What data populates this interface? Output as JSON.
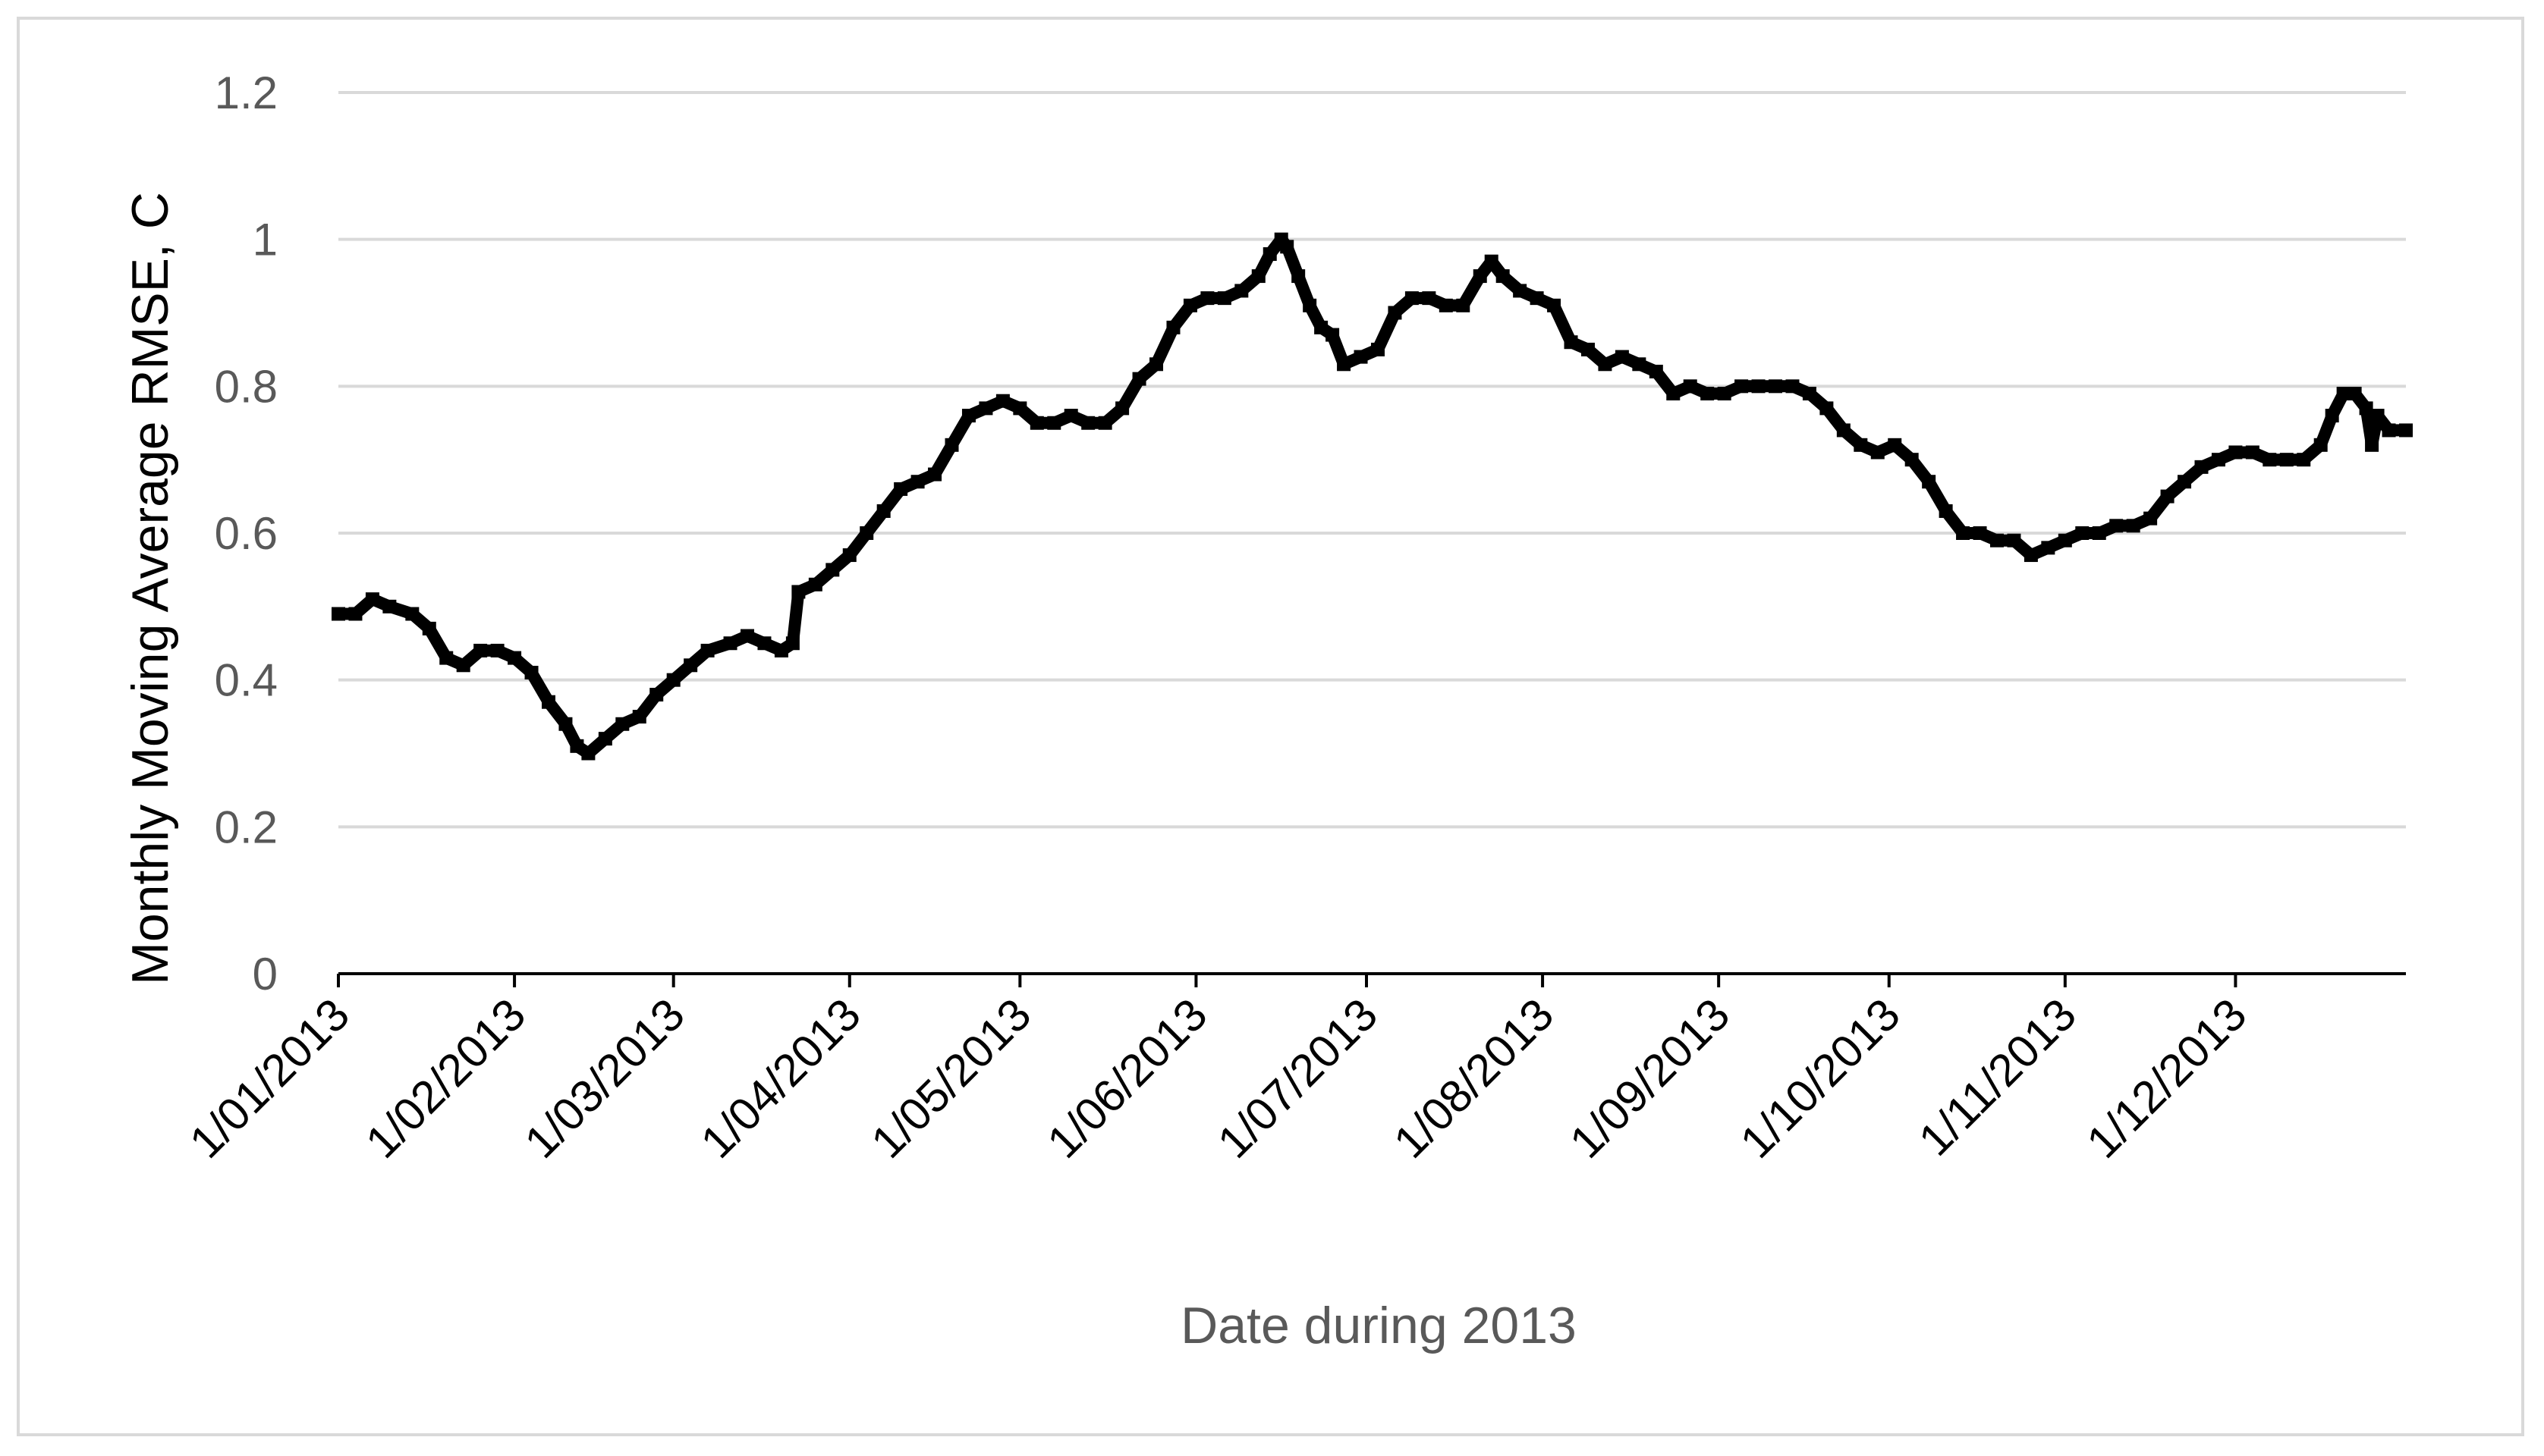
{
  "chart_data": {
    "type": "line",
    "title": "",
    "xlabel": "Date during 2013",
    "ylabel": "Monthly Moving Average RMSE, C",
    "ylim": [
      0,
      1.2
    ],
    "y_ticks": [
      "0",
      "0.2",
      "0.4",
      "0.6",
      "0.8",
      "1",
      "1.2"
    ],
    "x_range": [
      "2013-01-01",
      "2013-12-31"
    ],
    "x_ticks": [
      {
        "label": "1/01/2013",
        "date": "2013-01-01"
      },
      {
        "label": "1/02/2013",
        "date": "2013-02-01"
      },
      {
        "label": "1/03/2013",
        "date": "2013-03-01"
      },
      {
        "label": "1/04/2013",
        "date": "2013-04-01"
      },
      {
        "label": "1/05/2013",
        "date": "2013-05-01"
      },
      {
        "label": "1/06/2013",
        "date": "2013-06-01"
      },
      {
        "label": "1/07/2013",
        "date": "2013-07-01"
      },
      {
        "label": "1/08/2013",
        "date": "2013-08-01"
      },
      {
        "label": "1/09/2013",
        "date": "2013-09-01"
      },
      {
        "label": "1/10/2013",
        "date": "2013-10-01"
      },
      {
        "label": "1/11/2013",
        "date": "2013-11-01"
      },
      {
        "label": "1/12/2013",
        "date": "2013-12-01"
      }
    ],
    "grid": true,
    "legend": "none",
    "series": [
      {
        "color": "#000000",
        "points": [
          [
            "2013-01-01",
            0.49
          ],
          [
            "2013-01-04",
            0.49
          ],
          [
            "2013-01-07",
            0.51
          ],
          [
            "2013-01-10",
            0.5
          ],
          [
            "2013-01-14",
            0.49
          ],
          [
            "2013-01-17",
            0.47
          ],
          [
            "2013-01-20",
            0.43
          ],
          [
            "2013-01-23",
            0.42
          ],
          [
            "2013-01-26",
            0.44
          ],
          [
            "2013-01-29",
            0.44
          ],
          [
            "2013-02-01",
            0.43
          ],
          [
            "2013-02-04",
            0.41
          ],
          [
            "2013-02-07",
            0.37
          ],
          [
            "2013-02-10",
            0.34
          ],
          [
            "2013-02-12",
            0.31
          ],
          [
            "2013-02-14",
            0.3
          ],
          [
            "2013-02-17",
            0.32
          ],
          [
            "2013-02-20",
            0.34
          ],
          [
            "2013-02-23",
            0.35
          ],
          [
            "2013-02-26",
            0.38
          ],
          [
            "2013-03-01",
            0.4
          ],
          [
            "2013-03-04",
            0.42
          ],
          [
            "2013-03-07",
            0.44
          ],
          [
            "2013-03-11",
            0.45
          ],
          [
            "2013-03-14",
            0.46
          ],
          [
            "2013-03-17",
            0.45
          ],
          [
            "2013-03-20",
            0.44
          ],
          [
            "2013-03-22",
            0.45
          ],
          [
            "2013-03-23",
            0.52
          ],
          [
            "2013-03-26",
            0.53
          ],
          [
            "2013-03-29",
            0.55
          ],
          [
            "2013-04-01",
            0.57
          ],
          [
            "2013-04-04",
            0.6
          ],
          [
            "2013-04-07",
            0.63
          ],
          [
            "2013-04-10",
            0.66
          ],
          [
            "2013-04-13",
            0.67
          ],
          [
            "2013-04-16",
            0.68
          ],
          [
            "2013-04-19",
            0.72
          ],
          [
            "2013-04-22",
            0.76
          ],
          [
            "2013-04-25",
            0.77
          ],
          [
            "2013-04-28",
            0.78
          ],
          [
            "2013-05-01",
            0.77
          ],
          [
            "2013-05-04",
            0.75
          ],
          [
            "2013-05-07",
            0.75
          ],
          [
            "2013-05-10",
            0.76
          ],
          [
            "2013-05-13",
            0.75
          ],
          [
            "2013-05-16",
            0.75
          ],
          [
            "2013-05-19",
            0.77
          ],
          [
            "2013-05-22",
            0.81
          ],
          [
            "2013-05-25",
            0.83
          ],
          [
            "2013-05-28",
            0.88
          ],
          [
            "2013-05-31",
            0.91
          ],
          [
            "2013-06-03",
            0.92
          ],
          [
            "2013-06-06",
            0.92
          ],
          [
            "2013-06-09",
            0.93
          ],
          [
            "2013-06-12",
            0.95
          ],
          [
            "2013-06-14",
            0.98
          ],
          [
            "2013-06-16",
            1.0
          ],
          [
            "2013-06-17",
            0.99
          ],
          [
            "2013-06-19",
            0.95
          ],
          [
            "2013-06-21",
            0.91
          ],
          [
            "2013-06-23",
            0.88
          ],
          [
            "2013-06-25",
            0.87
          ],
          [
            "2013-06-27",
            0.83
          ],
          [
            "2013-06-30",
            0.84
          ],
          [
            "2013-07-03",
            0.85
          ],
          [
            "2013-07-06",
            0.9
          ],
          [
            "2013-07-09",
            0.92
          ],
          [
            "2013-07-12",
            0.92
          ],
          [
            "2013-07-15",
            0.91
          ],
          [
            "2013-07-18",
            0.91
          ],
          [
            "2013-07-21",
            0.95
          ],
          [
            "2013-07-23",
            0.97
          ],
          [
            "2013-07-25",
            0.95
          ],
          [
            "2013-07-28",
            0.93
          ],
          [
            "2013-07-31",
            0.92
          ],
          [
            "2013-08-03",
            0.91
          ],
          [
            "2013-08-06",
            0.86
          ],
          [
            "2013-08-09",
            0.85
          ],
          [
            "2013-08-12",
            0.83
          ],
          [
            "2013-08-15",
            0.84
          ],
          [
            "2013-08-18",
            0.83
          ],
          [
            "2013-08-21",
            0.82
          ],
          [
            "2013-08-24",
            0.79
          ],
          [
            "2013-08-27",
            0.8
          ],
          [
            "2013-08-30",
            0.79
          ],
          [
            "2013-09-02",
            0.79
          ],
          [
            "2013-09-05",
            0.8
          ],
          [
            "2013-09-08",
            0.8
          ],
          [
            "2013-09-11",
            0.8
          ],
          [
            "2013-09-14",
            0.8
          ],
          [
            "2013-09-17",
            0.79
          ],
          [
            "2013-09-20",
            0.77
          ],
          [
            "2013-09-23",
            0.74
          ],
          [
            "2013-09-26",
            0.72
          ],
          [
            "2013-09-29",
            0.71
          ],
          [
            "2013-10-02",
            0.72
          ],
          [
            "2013-10-05",
            0.7
          ],
          [
            "2013-10-08",
            0.67
          ],
          [
            "2013-10-11",
            0.63
          ],
          [
            "2013-10-14",
            0.6
          ],
          [
            "2013-10-17",
            0.6
          ],
          [
            "2013-10-20",
            0.59
          ],
          [
            "2013-10-23",
            0.59
          ],
          [
            "2013-10-26",
            0.57
          ],
          [
            "2013-10-29",
            0.58
          ],
          [
            "2013-11-01",
            0.59
          ],
          [
            "2013-11-04",
            0.6
          ],
          [
            "2013-11-07",
            0.6
          ],
          [
            "2013-11-10",
            0.61
          ],
          [
            "2013-11-13",
            0.61
          ],
          [
            "2013-11-16",
            0.62
          ],
          [
            "2013-11-19",
            0.65
          ],
          [
            "2013-11-22",
            0.67
          ],
          [
            "2013-11-25",
            0.69
          ],
          [
            "2013-11-28",
            0.7
          ],
          [
            "2013-12-01",
            0.71
          ],
          [
            "2013-12-04",
            0.71
          ],
          [
            "2013-12-07",
            0.7
          ],
          [
            "2013-12-10",
            0.7
          ],
          [
            "2013-12-13",
            0.7
          ],
          [
            "2013-12-16",
            0.72
          ],
          [
            "2013-12-18",
            0.76
          ],
          [
            "2013-12-20",
            0.79
          ],
          [
            "2013-12-22",
            0.79
          ],
          [
            "2013-12-24",
            0.77
          ],
          [
            "2013-12-25",
            0.72
          ],
          [
            "2013-12-26",
            0.76
          ],
          [
            "2013-12-28",
            0.74
          ],
          [
            "2013-12-31",
            0.74
          ]
        ]
      }
    ]
  }
}
